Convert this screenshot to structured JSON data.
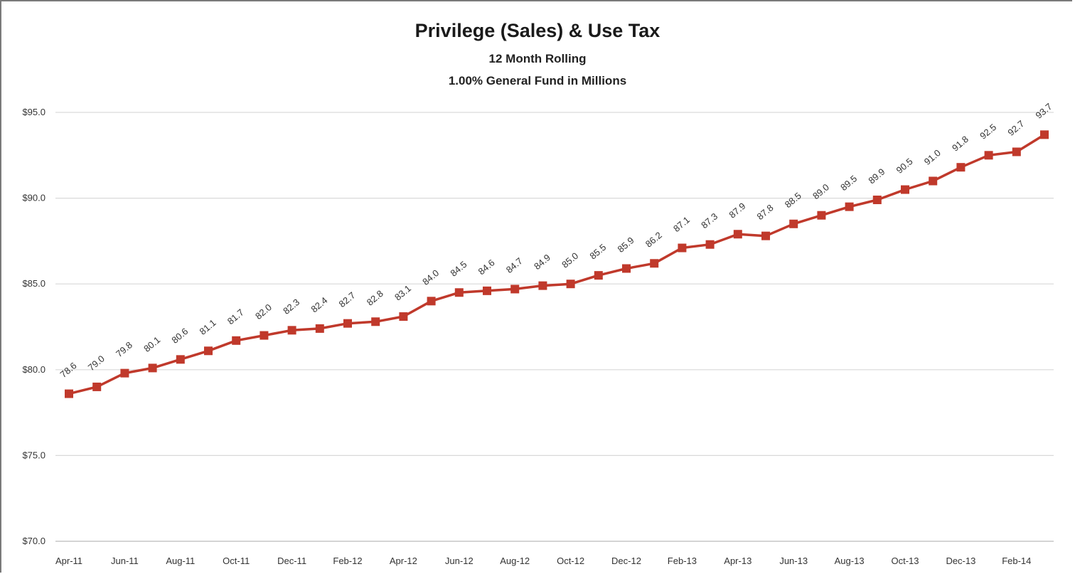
{
  "chart_data": {
    "type": "line",
    "title": "Privilege (Sales) & Use Tax",
    "subtitle": [
      "12 Month Rolling",
      "1.00% General Fund in Millions"
    ],
    "xlabel": "",
    "ylabel": "",
    "ylim": [
      70,
      95
    ],
    "y_ticks": [
      "$70.0",
      "$75.0",
      "$80.0",
      "$85.0",
      "$90.0",
      "$95.0"
    ],
    "y_tick_values": [
      70,
      75,
      80,
      85,
      90,
      95
    ],
    "x": [
      "Apr-11",
      "May-11",
      "Jun-11",
      "Jul-11",
      "Aug-11",
      "Sep-11",
      "Oct-11",
      "Nov-11",
      "Dec-11",
      "Jan-12",
      "Feb-12",
      "Mar-12",
      "Apr-12",
      "May-12",
      "Jun-12",
      "Jul-12",
      "Aug-12",
      "Sep-12",
      "Oct-12",
      "Nov-12",
      "Dec-12",
      "Jan-13",
      "Feb-13",
      "Mar-13",
      "Apr-13",
      "May-13",
      "Jun-13",
      "Jul-13",
      "Aug-13",
      "Sep-13",
      "Oct-13",
      "Nov-13",
      "Dec-13",
      "Jan-14",
      "Feb-14",
      "Mar-14"
    ],
    "x_tick_labels": [
      "Apr-11",
      "Jun-11",
      "Aug-11",
      "Oct-11",
      "Dec-11",
      "Feb-12",
      "Apr-12",
      "Jun-12",
      "Aug-12",
      "Oct-12",
      "Dec-12",
      "Feb-13",
      "Apr-13",
      "Jun-13",
      "Aug-13",
      "Oct-13",
      "Dec-13",
      "Feb-14"
    ],
    "series": [
      {
        "values": [
          78.6,
          79.0,
          79.8,
          80.1,
          80.6,
          81.1,
          81.7,
          82.0,
          82.3,
          82.4,
          82.7,
          82.8,
          83.1,
          84.0,
          84.5,
          84.6,
          84.7,
          84.9,
          85.0,
          85.5,
          85.9,
          86.2,
          87.1,
          87.3,
          87.9,
          87.8,
          88.5,
          89.0,
          89.5,
          89.9,
          90.5,
          91.0,
          91.8,
          92.5,
          92.7,
          93.7
        ],
        "labels": [
          "78.6",
          "79.0",
          "79.8",
          "80.1",
          "80.6",
          "81.1",
          "81.7",
          "82.0",
          "82.3",
          "82.4",
          "82.7",
          "82.8",
          "83.1",
          "84.0",
          "84.5",
          "84.6",
          "84.7",
          "84.9",
          "85.0",
          "85.5",
          "85.9",
          "86.2",
          "87.1",
          "87.3",
          "87.9",
          "87.8",
          "88.5",
          "89.0",
          "89.5",
          "89.9",
          "90.5",
          "91.0",
          "91.8",
          "92.5",
          "92.7",
          "93.7"
        ],
        "color": "#c0392b",
        "marker": "square"
      }
    ],
    "grid": true,
    "gridline_color": "#d9d9d9",
    "legend": "none"
  }
}
